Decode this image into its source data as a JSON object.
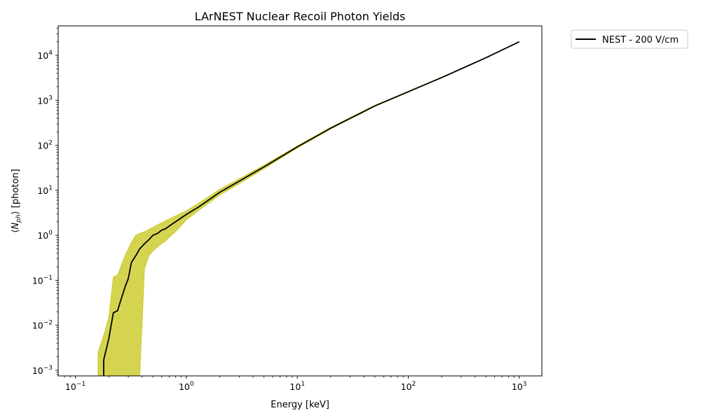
{
  "chart_data": {
    "type": "line",
    "title": "LArNEST Nuclear Recoil Photon Yields",
    "xlabel": "Energy [keV]",
    "ylabel": "⟨N_ph⟩ [photon]",
    "x_scale": "log",
    "y_scale": "log",
    "xlim": [
      0.07,
      1600
    ],
    "ylim": [
      0.00075,
      45000
    ],
    "x_ticks": [
      {
        "value": 0.1,
        "base": "10",
        "exp": "−1"
      },
      {
        "value": 1,
        "base": "10",
        "exp": "0"
      },
      {
        "value": 10,
        "base": "10",
        "exp": "1"
      },
      {
        "value": 100,
        "base": "10",
        "exp": "2"
      },
      {
        "value": 1000,
        "base": "10",
        "exp": "3"
      }
    ],
    "y_ticks": [
      {
        "value": 0.001,
        "base": "10",
        "exp": "−3"
      },
      {
        "value": 0.01,
        "base": "10",
        "exp": "−2"
      },
      {
        "value": 0.1,
        "base": "10",
        "exp": "−1"
      },
      {
        "value": 1,
        "base": "10",
        "exp": "0"
      },
      {
        "value": 10,
        "base": "10",
        "exp": "1"
      },
      {
        "value": 100,
        "base": "10",
        "exp": "2"
      },
      {
        "value": 1000,
        "base": "10",
        "exp": "3"
      },
      {
        "value": 10000,
        "base": "10",
        "exp": "4"
      }
    ],
    "grid": false,
    "legend_position": "outside-top-right",
    "series": [
      {
        "name": "NEST - 200 V/cm",
        "color": "#000000",
        "x": [
          0.18,
          0.18,
          0.2,
          0.22,
          0.24,
          0.26,
          0.28,
          0.3,
          0.32,
          0.35,
          0.38,
          0.42,
          0.46,
          0.5,
          0.55,
          0.6,
          0.65,
          0.7,
          0.8,
          1.0,
          1.3,
          2.0,
          3.0,
          5.0,
          10,
          20,
          50,
          100,
          200,
          500,
          1000
        ],
        "y": [
          0.0007,
          0.0017,
          0.005,
          0.019,
          0.021,
          0.04,
          0.07,
          0.11,
          0.25,
          0.35,
          0.5,
          0.65,
          0.8,
          1.0,
          1.1,
          1.3,
          1.4,
          1.6,
          2.0,
          2.9,
          4.3,
          9.0,
          16.0,
          33.0,
          92.0,
          240.0,
          750.0,
          1550.0,
          3200.0,
          8800.0,
          20000.0
        ]
      }
    ],
    "band": {
      "color": "#cccc33",
      "x": [
        0.16,
        0.18,
        0.2,
        0.22,
        0.24,
        0.26,
        0.28,
        0.3,
        0.32,
        0.35,
        0.38,
        0.42,
        0.46,
        0.5,
        0.55,
        0.6,
        0.65,
        0.7,
        0.8,
        1.0,
        1.3,
        2.0,
        3.0,
        5.0,
        10,
        20,
        50,
        100,
        200,
        500,
        1000
      ],
      "upper": [
        0.0025,
        0.006,
        0.015,
        0.12,
        0.13,
        0.22,
        0.35,
        0.5,
        0.7,
        1.0,
        1.1,
        1.2,
        1.35,
        1.5,
        1.7,
        1.9,
        2.1,
        2.3,
        2.7,
        3.5,
        5.2,
        10.5,
        18.0,
        36.0,
        97.0,
        250.0,
        770.0,
        1580.0,
        3260.0,
        8950.0,
        20200.0
      ],
      "lower": [
        0.0007,
        0.0007,
        0.0007,
        0.0007,
        0.0007,
        0.0007,
        0.0007,
        0.0007,
        0.0007,
        0.0007,
        0.0007,
        0.18,
        0.35,
        0.45,
        0.55,
        0.65,
        0.75,
        0.9,
        1.2,
        2.2,
        3.6,
        7.8,
        14.0,
        30.0,
        87.0,
        230.0,
        730.0,
        1520.0,
        3150.0,
        8700.0,
        19800.0
      ]
    }
  }
}
